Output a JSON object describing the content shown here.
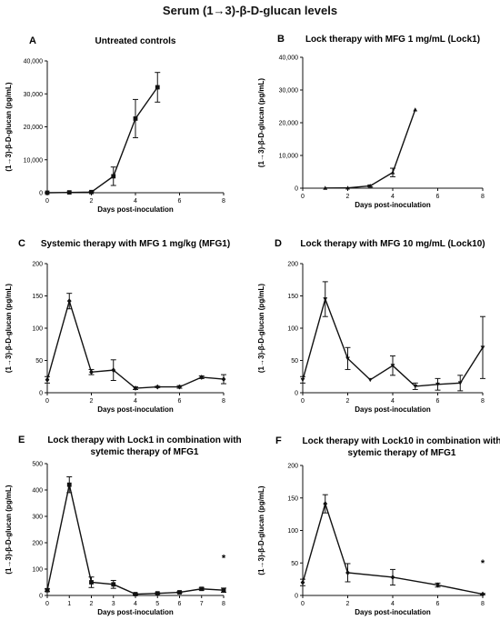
{
  "figure_title": "Serum (1→3)-β-D-glucan levels",
  "chart_data": [
    {
      "type": "line",
      "letter": "A",
      "title": [
        "Untreated controls"
      ],
      "xlabel": "Days post-inoculation",
      "ylabel": "(1→3)-β-D-glucan  (pg/mL)",
      "xlim": [
        0,
        8
      ],
      "ylim": [
        0,
        40000
      ],
      "xticks": [
        0,
        2,
        4,
        6,
        8
      ],
      "yticks": [
        0,
        10000,
        20000,
        30000,
        40000
      ],
      "ytick_labels": [
        "0",
        "10,000",
        "20,000",
        "30,000",
        "40,000"
      ],
      "marker": "square",
      "annotation": "",
      "series": [
        {
          "x": [
            0,
            1,
            2,
            3,
            4,
            5
          ],
          "y": [
            0,
            100,
            200,
            5000,
            22500,
            32000
          ],
          "err": [
            0,
            100,
            150,
            2800,
            5800,
            4500
          ]
        }
      ]
    },
    {
      "type": "line",
      "letter": "B",
      "title": [
        "Lock therapy with MFG 1 mg/mL (Lock1)"
      ],
      "xlabel": "Days post-inoculation",
      "ylabel": "(1→3)-β-D-glucan  (pg/mL)",
      "xlim": [
        0,
        8
      ],
      "ylim": [
        0,
        40000
      ],
      "xticks": [
        0,
        2,
        4,
        6,
        8
      ],
      "yticks": [
        0,
        10000,
        20000,
        30000,
        40000
      ],
      "ytick_labels": [
        "0",
        "10,000",
        "20,000",
        "30,000",
        "40,000"
      ],
      "marker": "triangle",
      "annotation": "",
      "series": [
        {
          "x": [
            1,
            2,
            3,
            4,
            5
          ],
          "y": [
            50,
            100,
            700,
            4800,
            24000
          ],
          "err": [
            0,
            0,
            300,
            1300,
            0
          ]
        }
      ]
    },
    {
      "type": "line",
      "letter": "C",
      "title": [
        "Systemic therapy with MFG 1 mg/kg (MFG1)"
      ],
      "xlabel": "Days post-inoculation",
      "ylabel": "(1→3)-β-D-glucan  (pg/mL)",
      "xlim": [
        0,
        8
      ],
      "ylim": [
        0,
        200
      ],
      "xticks": [
        0,
        2,
        4,
        6,
        8
      ],
      "yticks": [
        0,
        50,
        100,
        150,
        200
      ],
      "ytick_labels": [
        "0",
        "50",
        "100",
        "150",
        "200"
      ],
      "marker": "diamond",
      "annotation": "",
      "series": [
        {
          "x": [
            0,
            1,
            2,
            3,
            4,
            5,
            6,
            7,
            8
          ],
          "y": [
            20,
            142,
            32,
            35,
            7,
            9,
            9,
            24,
            21
          ],
          "err": [
            5,
            12,
            4,
            16,
            2,
            1,
            2,
            2,
            7
          ]
        }
      ]
    },
    {
      "type": "line",
      "letter": "D",
      "title": [
        "Lock therapy with MFG 10 mg/mL (Lock10)"
      ],
      "xlabel": "Days post-inoculation",
      "ylabel": "(1→3)-β-D-glucan  (pg/mL)",
      "xlim": [
        0,
        8
      ],
      "ylim": [
        0,
        200
      ],
      "xticks": [
        0,
        2,
        4,
        6,
        8
      ],
      "yticks": [
        0,
        50,
        100,
        150,
        200
      ],
      "ytick_labels": [
        "0",
        "50",
        "100",
        "150",
        "200"
      ],
      "marker": "triangle-down",
      "annotation": "",
      "series": [
        {
          "x": [
            0,
            1,
            2,
            3,
            4,
            5,
            6,
            7,
            8
          ],
          "y": [
            20,
            145,
            53,
            20,
            42,
            10,
            13,
            15,
            70
          ],
          "err": [
            5,
            27,
            17,
            0,
            15,
            5,
            9,
            12,
            48
          ]
        }
      ]
    },
    {
      "type": "line",
      "letter": "E",
      "title": [
        "Lock therapy with Lock1 in combination with",
        "sytemic therapy of MFG1"
      ],
      "xlabel": "Days post-inoculation",
      "ylabel": "(1→3)-β-D-glucan  (pg/mL)",
      "xlim": [
        0,
        8
      ],
      "ylim": [
        0,
        500
      ],
      "xticks": [
        0,
        1,
        2,
        3,
        4,
        5,
        6,
        7,
        8
      ],
      "yticks": [
        0,
        100,
        200,
        300,
        400,
        500
      ],
      "ytick_labels": [
        "0",
        "100",
        "200",
        "300",
        "400",
        "500"
      ],
      "marker": "square",
      "annotation": "*",
      "annotation_x": 8,
      "annotation_y": 130,
      "series": [
        {
          "x": [
            0,
            1,
            2,
            3,
            4,
            5,
            6,
            7,
            8
          ],
          "y": [
            20,
            420,
            50,
            42,
            5,
            8,
            12,
            25,
            20
          ],
          "err": [
            5,
            30,
            20,
            15,
            2,
            2,
            3,
            5,
            8
          ]
        }
      ]
    },
    {
      "type": "line",
      "letter": "F",
      "title": [
        "Lock therapy with Lock10 in combination with",
        "sytemic therapy of MFG1"
      ],
      "xlabel": "Days post-inoculation",
      "ylabel": "(1→3)-β-D-glucan  (pg/mL)",
      "xlim": [
        0,
        8
      ],
      "ylim": [
        0,
        200
      ],
      "xticks": [
        0,
        2,
        4,
        6,
        8
      ],
      "yticks": [
        0,
        50,
        100,
        150,
        200
      ],
      "ytick_labels": [
        "0",
        "50",
        "100",
        "150",
        "200"
      ],
      "marker": "diamond",
      "annotation": "*",
      "annotation_x": 8,
      "annotation_y": 45,
      "series": [
        {
          "x": [
            0,
            1,
            2,
            4,
            6,
            8
          ],
          "y": [
            20,
            141,
            35,
            28,
            16,
            2
          ],
          "err": [
            5,
            14,
            14,
            12,
            3,
            1
          ]
        }
      ]
    }
  ]
}
